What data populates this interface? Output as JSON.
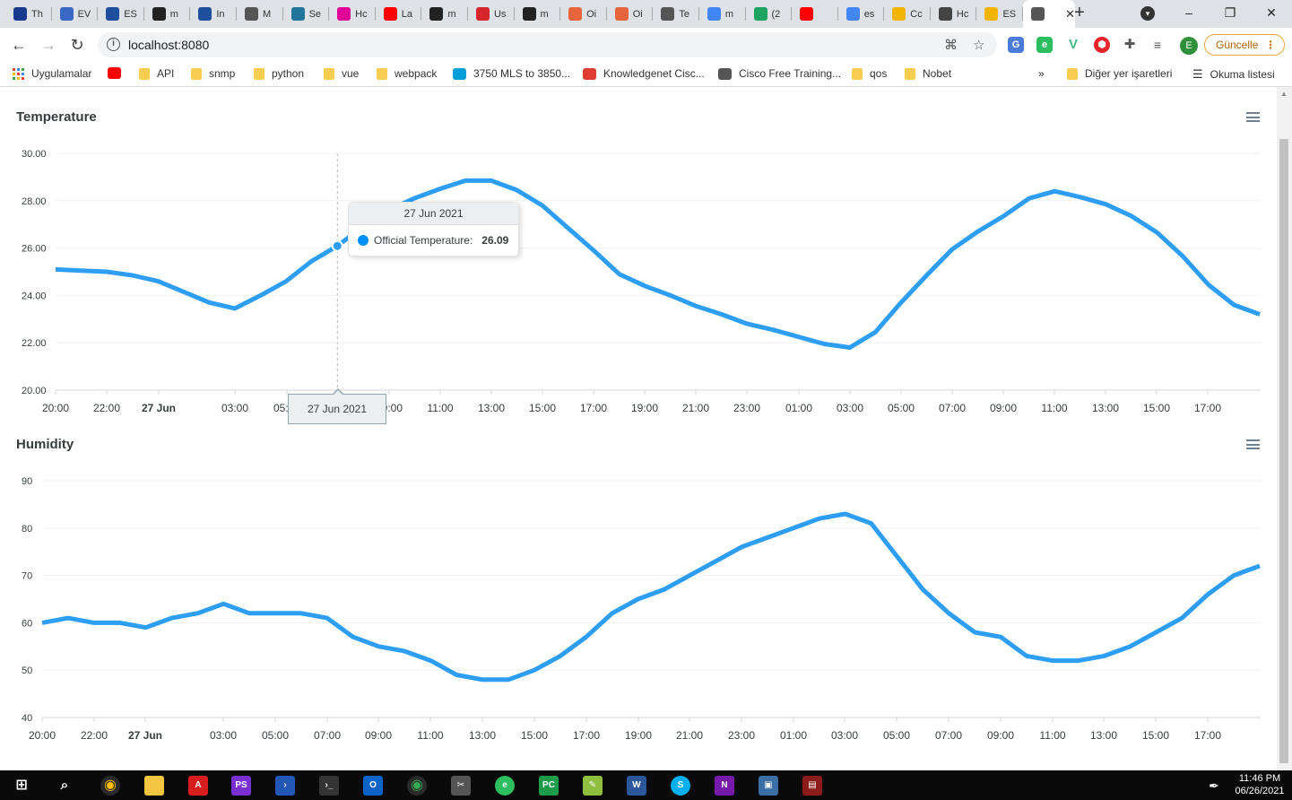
{
  "browser": {
    "tabs": [
      {
        "title": "Th",
        "icon": "blue-app-icon",
        "color": "#1a3a8f"
      },
      {
        "title": "EV",
        "icon": "link-icon",
        "color": "#3b67c4"
      },
      {
        "title": "ES",
        "icon": "r-icon",
        "color": "#1d4f9c"
      },
      {
        "title": "m",
        "icon": "github-icon",
        "color": "#222222"
      },
      {
        "title": "In",
        "icon": "r-icon",
        "color": "#1d4f9c"
      },
      {
        "title": "M",
        "icon": "globe-icon",
        "color": "#555555"
      },
      {
        "title": "Se",
        "icon": "wordpress-icon",
        "color": "#21759b"
      },
      {
        "title": "Hc",
        "icon": "graphql-icon",
        "color": "#e10098"
      },
      {
        "title": "La",
        "icon": "youtube-icon",
        "color": "#ff0000"
      },
      {
        "title": "m",
        "icon": "github-icon",
        "color": "#222222"
      },
      {
        "title": "Us",
        "icon": "s-icon",
        "color": "#d7262b"
      },
      {
        "title": "m",
        "icon": "github-icon",
        "color": "#222222"
      },
      {
        "title": "Oi",
        "icon": "octopus-icon",
        "color": "#e8643c"
      },
      {
        "title": "Oi",
        "icon": "octopus-icon",
        "color": "#e8643c"
      },
      {
        "title": "Te",
        "icon": "globe-icon",
        "color": "#555555"
      },
      {
        "title": "m",
        "icon": "google-icon",
        "color": "#4285f4"
      },
      {
        "title": "(2",
        "icon": "badge-icon",
        "color": "#1ea362"
      },
      {
        "title": "",
        "icon": "youtube-icon",
        "color": "#ff0000"
      },
      {
        "title": "es",
        "icon": "google-icon",
        "color": "#4285f4"
      },
      {
        "title": "Cc",
        "icon": "emoji-icon",
        "color": "#f2b400"
      },
      {
        "title": "Hc",
        "icon": "shield-icon",
        "color": "#444444"
      },
      {
        "title": "ES",
        "icon": "emoji-icon",
        "color": "#f2b400"
      },
      {
        "title": "",
        "icon": "globe-icon",
        "color": "#555555",
        "active": true
      }
    ],
    "url": "localhost:8080",
    "update_label": "Güncelle",
    "avatar_letter": "E",
    "bookmarks": [
      {
        "label": "Uygulamalar",
        "icon": "apps-icon"
      },
      {
        "label": "",
        "icon": "youtube-icon"
      },
      {
        "label": "API",
        "icon": "folder-icon"
      },
      {
        "label": "snmp",
        "icon": "folder-icon"
      },
      {
        "label": "python",
        "icon": "folder-icon"
      },
      {
        "label": "vue",
        "icon": "folder-icon"
      },
      {
        "label": "webpack",
        "icon": "folder-icon"
      },
      {
        "label": "3750 MLS to 3850...",
        "icon": "cisco-icon"
      },
      {
        "label": "Knowledgenet Cisc...",
        "icon": "knowledgenet-icon"
      },
      {
        "label": "Cisco Free Training...",
        "icon": "globe-icon"
      },
      {
        "label": "qos",
        "icon": "folder-icon"
      },
      {
        "label": "Nobet",
        "icon": "folder-icon"
      }
    ],
    "bookmarks_more": "»",
    "other_bookmarks": "Diğer yer işaretleri",
    "reading_list": "Okuma listesi"
  },
  "charts": {
    "temperature_title": "Temperature",
    "humidity_title": "Humidity",
    "line_color": "#2e9ef4"
  },
  "tooltip": {
    "title": "27 Jun 2021",
    "series_label": "Official Temperature:",
    "value": "26.09",
    "x_label": "27 Jun 2021"
  },
  "taskbar": {
    "time": "11:46 PM",
    "date": "06/26/2021"
  },
  "chart_data": [
    {
      "type": "line",
      "title": "Temperature",
      "series": [
        {
          "name": "Official Temperature",
          "x": [
            "20:00",
            "21:00",
            "22:00",
            "23:00",
            "00:00",
            "01:00",
            "02:00",
            "03:00",
            "04:00",
            "05:00",
            "06:00",
            "07:00",
            "08:00",
            "09:00",
            "10:00",
            "11:00",
            "12:00",
            "13:00",
            "14:00",
            "15:00",
            "16:00",
            "17:00",
            "18:00",
            "19:00",
            "20:00",
            "21:00",
            "22:00",
            "23:00",
            "00:00",
            "01:00",
            "02:00",
            "03:00",
            "04:00",
            "05:00",
            "06:00",
            "07:00",
            "08:00",
            "09:00",
            "10:00",
            "11:00",
            "12:00",
            "13:00",
            "14:00",
            "15:00",
            "16:00",
            "17:00",
            "18:00",
            "19:00"
          ],
          "values": [
            25.1,
            25.05,
            25.0,
            24.85,
            24.6,
            24.15,
            23.7,
            23.45,
            24.0,
            24.6,
            25.45,
            26.09,
            26.9,
            27.6,
            28.1,
            28.5,
            28.85,
            28.85,
            28.45,
            27.8,
            26.85,
            25.9,
            24.9,
            24.4,
            24.0,
            23.55,
            23.2,
            22.8,
            22.55,
            22.25,
            21.95,
            21.8,
            22.45,
            23.7,
            24.85,
            25.95,
            26.7,
            27.35,
            28.1,
            28.4,
            28.15,
            27.85,
            27.35,
            26.65,
            25.65,
            24.45,
            23.6,
            23.2
          ]
        }
      ],
      "xticks": [
        "20:00",
        "22:00",
        "27 Jun",
        "03:00",
        "05:00",
        "07:00",
        "09:00",
        "11:00",
        "13:00",
        "15:00",
        "17:00",
        "19:00",
        "21:00",
        "23:00",
        "01:00",
        "03:00",
        "05:00",
        "07:00",
        "09:00",
        "11:00",
        "13:00",
        "15:00",
        "17:00"
      ],
      "yticks": [
        "20.00",
        "22.00",
        "24.00",
        "26.00",
        "28.00",
        "30.00"
      ],
      "ylim": [
        20,
        30
      ],
      "grid": true
    },
    {
      "type": "line",
      "title": "Humidity",
      "series": [
        {
          "name": "Humidity",
          "x": [
            "20:00",
            "21:00",
            "22:00",
            "23:00",
            "00:00",
            "01:00",
            "02:00",
            "03:00",
            "04:00",
            "05:00",
            "06:00",
            "07:00",
            "08:00",
            "09:00",
            "10:00",
            "11:00",
            "12:00",
            "13:00",
            "14:00",
            "15:00",
            "16:00",
            "17:00",
            "18:00",
            "19:00",
            "20:00",
            "21:00",
            "22:00",
            "23:00",
            "00:00",
            "01:00",
            "02:00",
            "03:00",
            "04:00",
            "05:00",
            "06:00",
            "07:00",
            "08:00",
            "09:00",
            "10:00",
            "11:00",
            "12:00",
            "13:00",
            "14:00",
            "15:00",
            "16:00",
            "17:00",
            "18:00",
            "19:00"
          ],
          "values": [
            60,
            61,
            60,
            60,
            59,
            61,
            62,
            64,
            62,
            62,
            62,
            61,
            57,
            55,
            54,
            52,
            49,
            48,
            48,
            50,
            53,
            57,
            62,
            65,
            67,
            70,
            73,
            76,
            78,
            80,
            82,
            83,
            81,
            74,
            67,
            62,
            58,
            57,
            53,
            52,
            52,
            53,
            55,
            58,
            61,
            66,
            70,
            72
          ]
        }
      ],
      "xticks": [
        "20:00",
        "22:00",
        "27 Jun",
        "03:00",
        "05:00",
        "07:00",
        "09:00",
        "11:00",
        "13:00",
        "15:00",
        "17:00",
        "19:00",
        "21:00",
        "23:00",
        "01:00",
        "03:00",
        "05:00",
        "07:00",
        "09:00",
        "11:00",
        "13:00",
        "15:00",
        "17:00"
      ],
      "yticks": [
        "40",
        "50",
        "60",
        "70",
        "80",
        "90"
      ],
      "ylim": [
        40,
        90
      ],
      "grid": true
    }
  ]
}
